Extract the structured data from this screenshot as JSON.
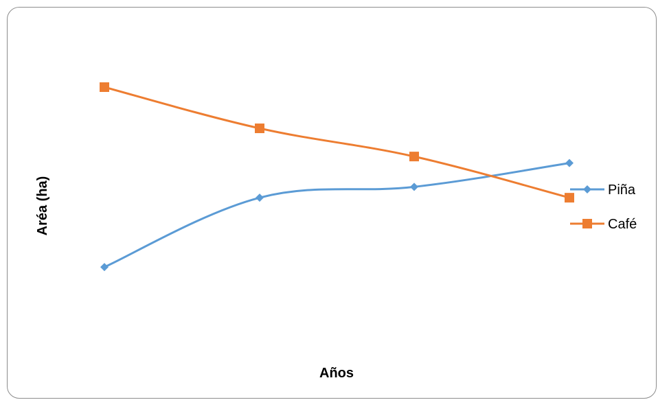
{
  "chart_data": {
    "type": "line",
    "title": "",
    "xlabel": "Años",
    "ylabel": "Aréa (ha)",
    "categories": [
      "",
      "",
      "",
      ""
    ],
    "ylim": [
      0,
      100
    ],
    "grid": false,
    "legend_position": "right",
    "series": [
      {
        "name": "Piña",
        "color": "#5B9BD5",
        "marker": "diamond",
        "values": [
          17,
          49,
          54,
          65
        ]
      },
      {
        "name": "Café",
        "color": "#ED7D31",
        "marker": "square",
        "values": [
          100,
          81,
          68,
          49
        ]
      }
    ]
  }
}
